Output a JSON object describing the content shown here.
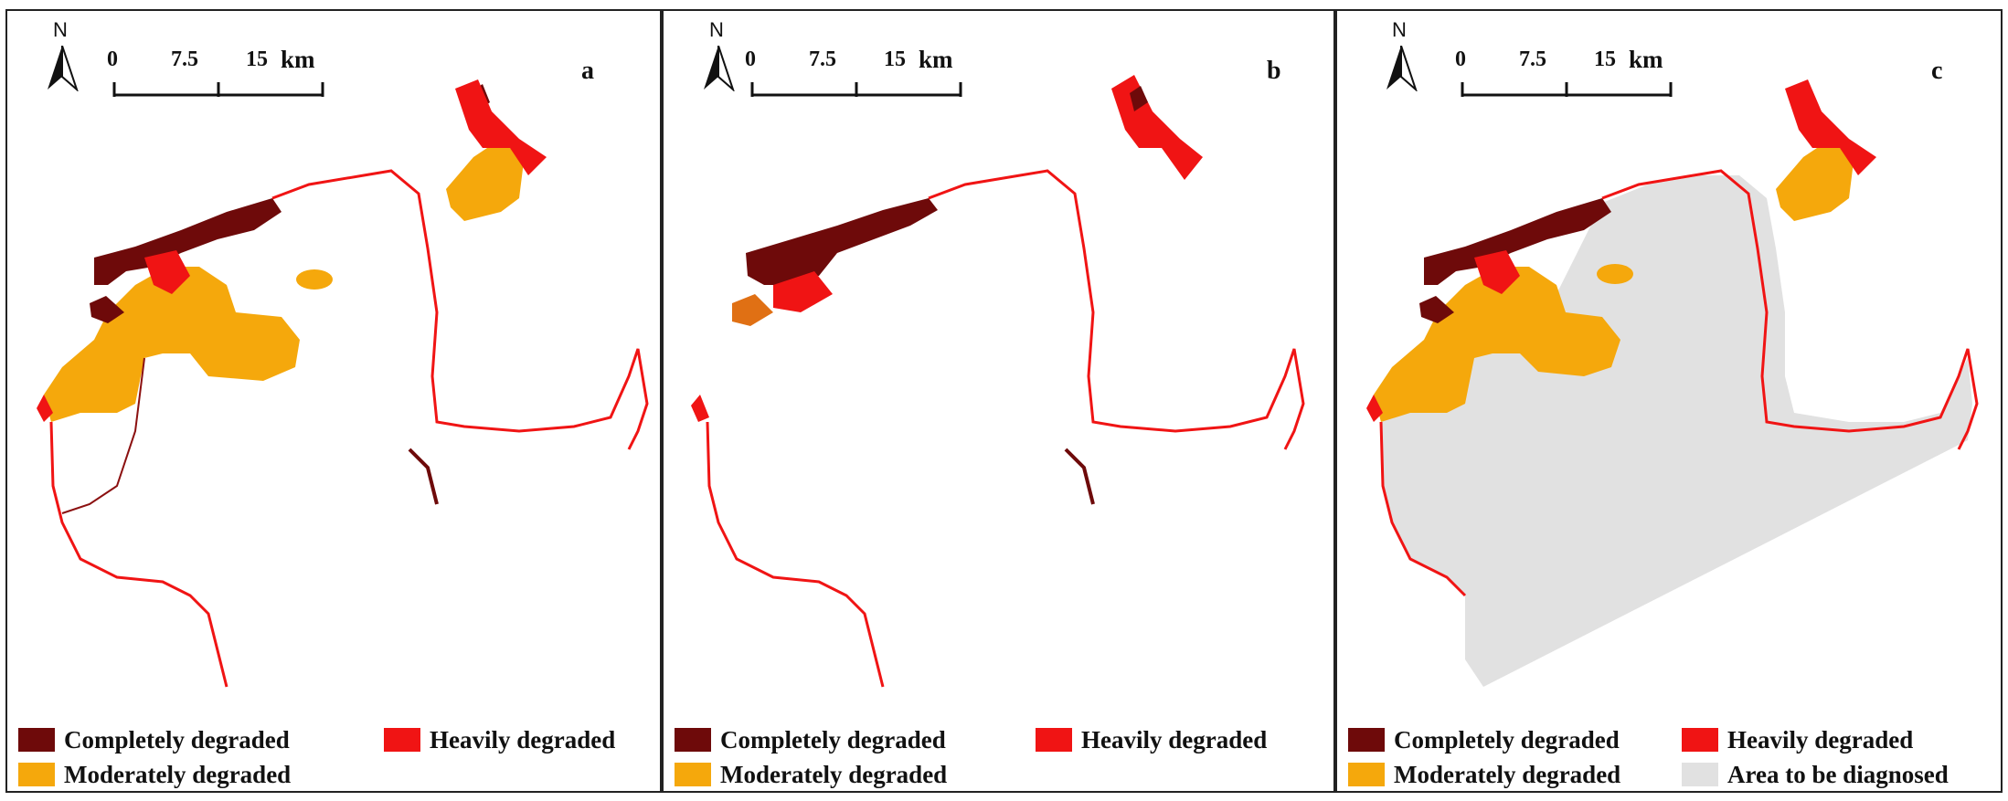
{
  "panels": [
    {
      "id": "a",
      "letter": "a"
    },
    {
      "id": "b",
      "letter": "b"
    },
    {
      "id": "c",
      "letter": "c"
    }
  ],
  "north_arrow": {
    "label": "N"
  },
  "scale_bar": {
    "ticks": [
      "0",
      "7.5",
      "15"
    ],
    "unit": "km"
  },
  "legend": {
    "completely": {
      "label": "Completely degraded",
      "color": "#6e0a0a"
    },
    "heavily": {
      "label": "Heavily degraded",
      "color": "#f01414"
    },
    "moderately": {
      "label": "Moderately degraded",
      "color": "#f5a80c"
    },
    "undiagnosed": {
      "label": "Area to be  diagnosed",
      "color": "#e1e1e1"
    }
  }
}
